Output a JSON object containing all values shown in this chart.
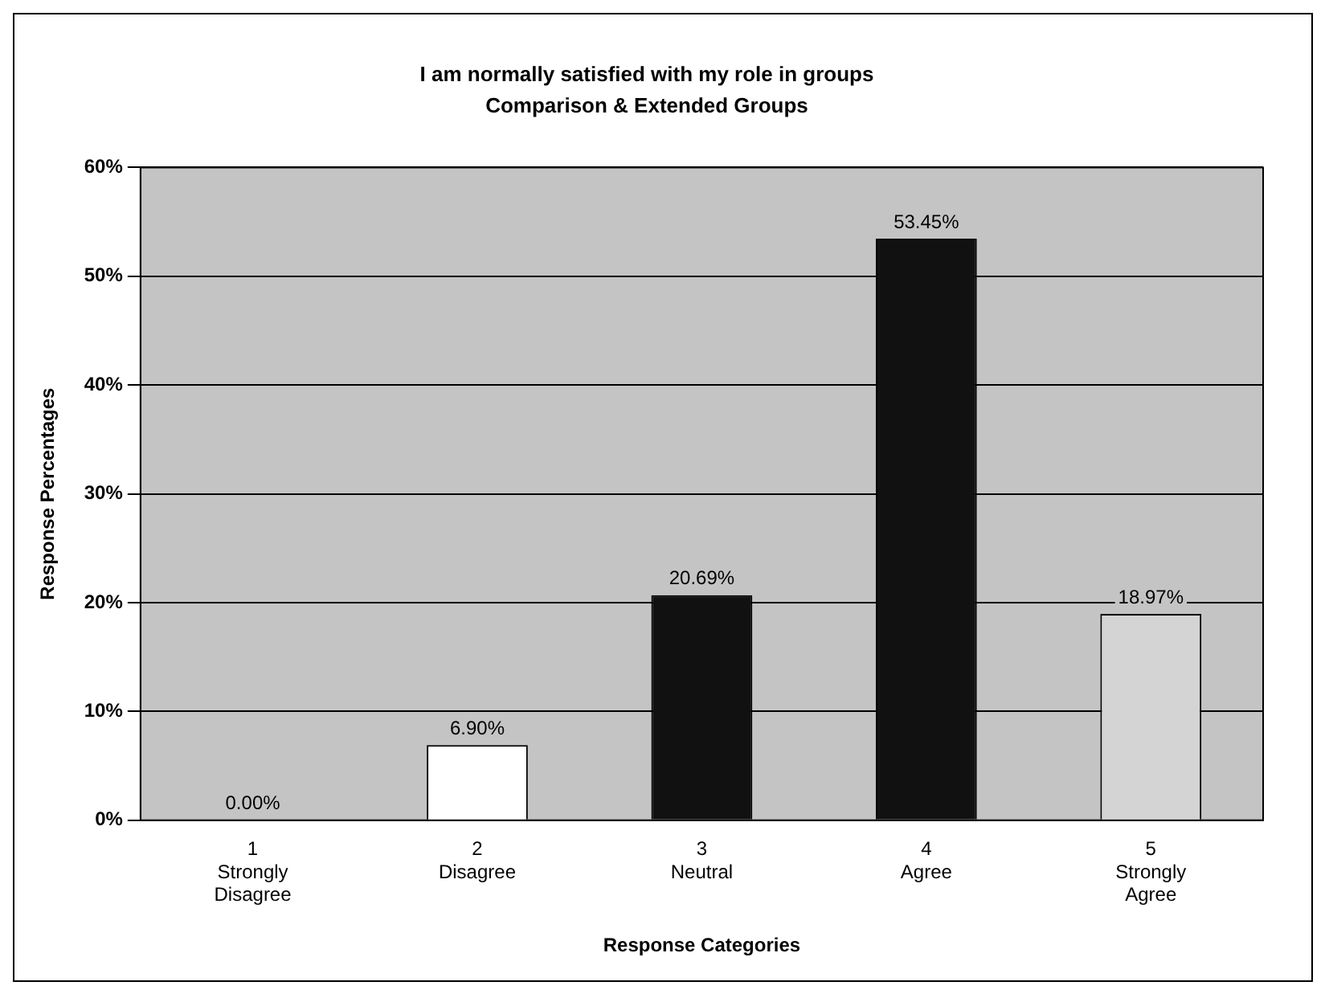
{
  "chart_data": {
    "type": "bar",
    "title": "I am normally satisfied with my role in groups",
    "subtitle": "Comparison & Extended Groups",
    "xlabel": "Response Categories",
    "ylabel": "Response Percentages",
    "categories": [
      "1 Strongly Disagree",
      "2 Disagree",
      "3 Neutral",
      "4 Agree",
      "5 Strongly Agree"
    ],
    "values": [
      0,
      6.9,
      20.69,
      53.45,
      18.97
    ],
    "value_labels": [
      "0.00%",
      "6.90%",
      "20.69%",
      "53.45%",
      "18.97%"
    ],
    "colors": [
      "#ffffff",
      "#ffffff",
      "#111111",
      "#111111",
      "#d4d4d4"
    ],
    "ylim": [
      0,
      60
    ],
    "yticks": [
      {
        "value": 0,
        "label": "0%"
      },
      {
        "value": 10,
        "label": "10%"
      },
      {
        "value": 20,
        "label": "20%"
      },
      {
        "value": 30,
        "label": "30%"
      },
      {
        "value": 40,
        "label": "40%"
      },
      {
        "value": 50,
        "label": "50%"
      },
      {
        "value": 60,
        "label": "60%"
      }
    ],
    "grid": "y"
  }
}
